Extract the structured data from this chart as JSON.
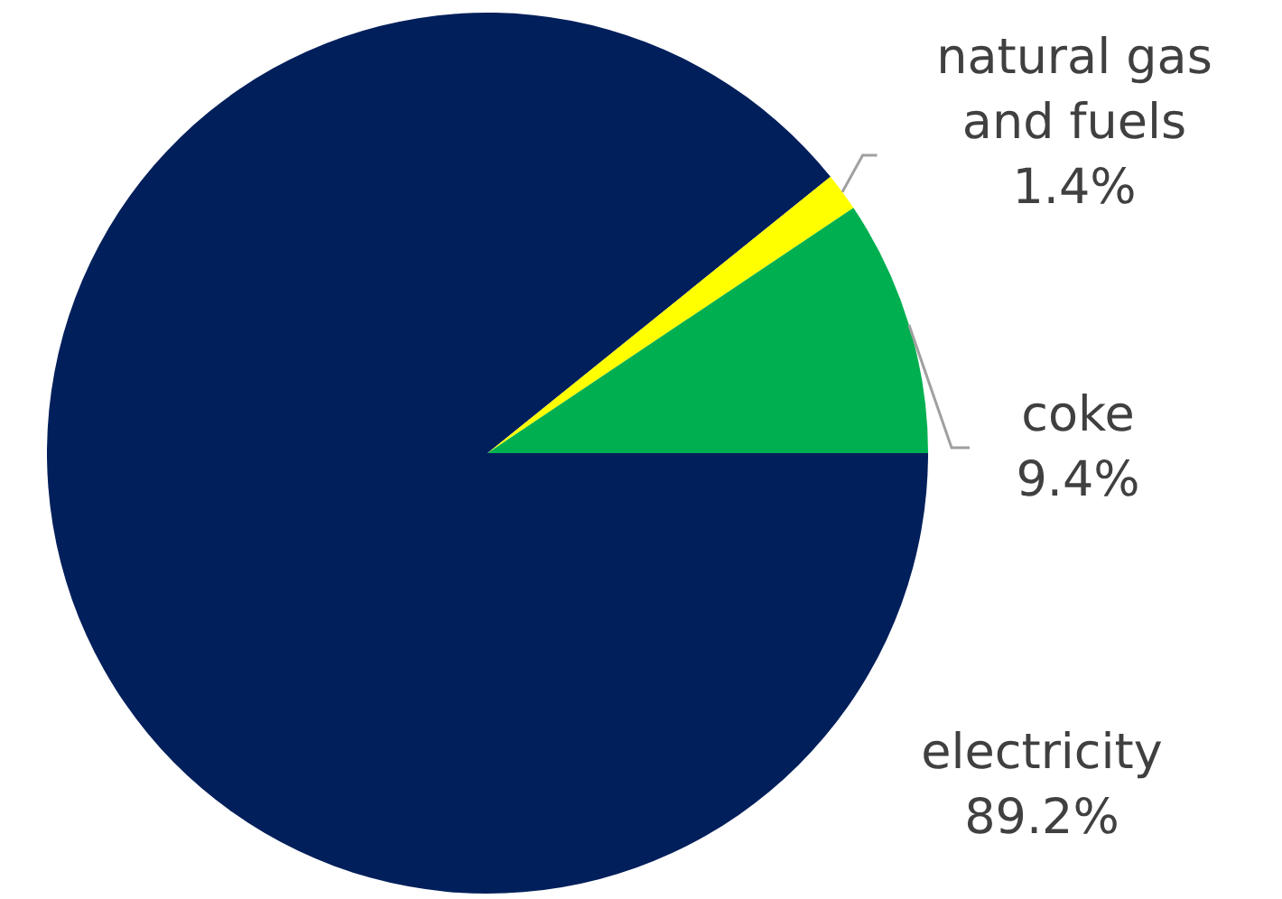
{
  "chart_data": {
    "type": "pie",
    "categories": [
      "electricity",
      "natural gas and fuels",
      "coke"
    ],
    "values": [
      89.2,
      1.4,
      9.4
    ],
    "colors": [
      "#001f5b",
      "#ffff00",
      "#00b050"
    ],
    "value_labels": [
      "89.2%",
      "1.4%",
      "9.4%"
    ],
    "legend": false
  }
}
